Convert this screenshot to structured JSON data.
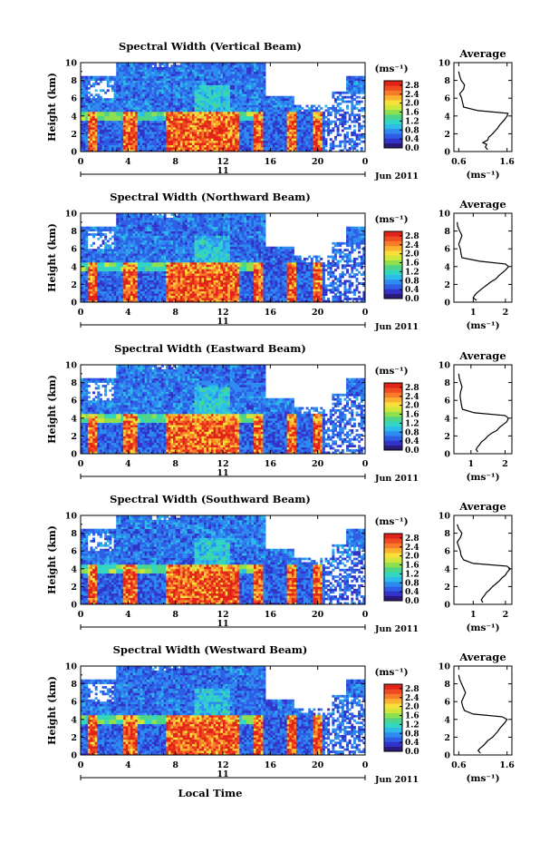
{
  "chart_data": [
    {
      "type": "heatmap",
      "title": "Spectral Width (Vertical Beam)",
      "ylabel": "Height (km)",
      "ylim": [
        0,
        10
      ],
      "yticks": [
        "0",
        "2",
        "4",
        "6",
        "8",
        "10"
      ],
      "xlim": [
        0,
        24
      ],
      "xticks": [
        "0",
        "4",
        "8",
        "12",
        "16",
        "20",
        "0"
      ],
      "day_label": "11",
      "date_label": "Jun 2011",
      "colorbar": {
        "unit": "(ms⁻¹)",
        "ticks": [
          "0.0",
          "0.4",
          "0.8",
          "1.2",
          "1.6",
          "2.0",
          "2.4",
          "2.8"
        ],
        "range": [
          0,
          3.0
        ],
        "colors": [
          "#2b1a7a",
          "#3232c8",
          "#2f5ee6",
          "#2e8cf0",
          "#2dbbe8",
          "#33d6c0",
          "#4ed58a",
          "#8ee04f",
          "#d0e63a",
          "#f7e03a",
          "#fbb130",
          "#f77b28",
          "#f04a22",
          "#e2231a"
        ]
      },
      "profile": {
        "title": "Average",
        "xlabel": "(ms⁻¹)",
        "xlim": [
          0.5,
          1.7
        ],
        "xticks": [
          "0.6",
          "1.6"
        ],
        "xtick_values": [
          0.6,
          1.6
        ],
        "ylim": [
          0,
          10
        ],
        "yticks": [
          "0",
          "2",
          "4",
          "6",
          "8",
          "10"
        ],
        "height_km": [
          0.2,
          0.5,
          0.8,
          1.0,
          1.3,
          1.6,
          2.0,
          2.3,
          2.6,
          3.0,
          3.3,
          3.6,
          4.0,
          4.3,
          4.6,
          5.0,
          5.5,
          6.0,
          6.5,
          7.0,
          7.5,
          8.0,
          8.5,
          9.0
        ],
        "width_ms": [
          1.2,
          1.15,
          1.18,
          1.1,
          1.2,
          1.22,
          1.3,
          1.35,
          1.4,
          1.45,
          1.5,
          1.55,
          1.6,
          1.62,
          1.0,
          0.7,
          0.68,
          0.66,
          0.62,
          0.7,
          0.72,
          0.65,
          0.62,
          0.6
        ]
      }
    },
    {
      "type": "heatmap",
      "title": "Spectral Width (Northward Beam)",
      "ylabel": "Height (km)",
      "ylim": [
        0,
        10
      ],
      "yticks": [
        "0",
        "2",
        "4",
        "6",
        "8",
        "10"
      ],
      "xlim": [
        0,
        24
      ],
      "xticks": [
        "0",
        "4",
        "8",
        "12",
        "16",
        "20",
        "0"
      ],
      "day_label": "11",
      "date_label": "Jun 2011",
      "colorbar": {
        "unit": "(ms⁻¹)",
        "ticks": [
          "0.0",
          "0.4",
          "0.8",
          "1.2",
          "1.6",
          "2.0",
          "2.4",
          "2.8"
        ],
        "range": [
          0,
          3.0
        ],
        "colors": [
          "#2b1a7a",
          "#3232c8",
          "#2f5ee6",
          "#2e8cf0",
          "#2dbbe8",
          "#33d6c0",
          "#4ed58a",
          "#8ee04f",
          "#d0e63a",
          "#f7e03a",
          "#fbb130",
          "#f77b28",
          "#f04a22",
          "#e2231a"
        ]
      },
      "profile": {
        "title": "Average",
        "xlabel": "(ms⁻¹)",
        "xlim": [
          0.4,
          2.2
        ],
        "xticks": [
          "1",
          "2"
        ],
        "xtick_values": [
          1,
          2
        ],
        "ylim": [
          0,
          10
        ],
        "yticks": [
          "0",
          "2",
          "4",
          "6",
          "8",
          "10"
        ],
        "height_km": [
          0.2,
          0.5,
          0.8,
          1.0,
          1.3,
          1.6,
          2.0,
          2.3,
          2.6,
          3.0,
          3.3,
          3.6,
          4.0,
          4.3,
          4.6,
          5.0,
          5.5,
          6.0,
          6.5,
          7.0,
          7.5,
          8.0,
          8.5,
          9.0
        ],
        "width_ms": [
          1.1,
          1.0,
          1.05,
          1.1,
          1.2,
          1.3,
          1.45,
          1.55,
          1.7,
          1.8,
          1.9,
          2.0,
          2.1,
          2.0,
          1.2,
          0.65,
          0.62,
          0.6,
          0.55,
          0.6,
          0.65,
          0.58,
          0.52,
          0.5
        ]
      }
    },
    {
      "type": "heatmap",
      "title": "Spectral Width (Eastward Beam)",
      "ylabel": "Height (km)",
      "ylim": [
        0,
        10
      ],
      "yticks": [
        "0",
        "2",
        "4",
        "6",
        "8",
        "10"
      ],
      "xlim": [
        0,
        24
      ],
      "xticks": [
        "0",
        "4",
        "8",
        "12",
        "16",
        "20",
        "0"
      ],
      "day_label": "11",
      "date_label": "Jun 2011",
      "colorbar": {
        "unit": "(ms⁻¹)",
        "ticks": [
          "0.0",
          "0.4",
          "0.8",
          "1.2",
          "1.6",
          "2.0",
          "2.4",
          "2.8"
        ],
        "range": [
          0,
          3.0
        ],
        "colors": [
          "#2b1a7a",
          "#3232c8",
          "#2f5ee6",
          "#2e8cf0",
          "#2dbbe8",
          "#33d6c0",
          "#4ed58a",
          "#8ee04f",
          "#d0e63a",
          "#f7e03a",
          "#fbb130",
          "#f77b28",
          "#f04a22",
          "#e2231a"
        ]
      },
      "profile": {
        "title": "Average",
        "xlabel": "(ms⁻¹)",
        "xlim": [
          0.5,
          2.2
        ],
        "xticks": [
          "1",
          "2"
        ],
        "xtick_values": [
          1,
          2
        ],
        "ylim": [
          0,
          10
        ],
        "yticks": [
          "0",
          "2",
          "4",
          "6",
          "8",
          "10"
        ],
        "height_km": [
          0.2,
          0.5,
          0.8,
          1.0,
          1.3,
          1.6,
          2.0,
          2.3,
          2.6,
          3.0,
          3.3,
          3.6,
          4.0,
          4.3,
          4.6,
          5.0,
          5.5,
          6.0,
          6.5,
          7.0,
          7.5,
          8.0,
          8.5,
          9.0
        ],
        "width_ms": [
          1.2,
          1.15,
          1.2,
          1.25,
          1.3,
          1.4,
          1.5,
          1.6,
          1.75,
          1.85,
          1.95,
          2.05,
          2.1,
          2.0,
          1.1,
          0.75,
          0.72,
          0.7,
          0.68,
          0.7,
          0.74,
          0.7,
          0.66,
          0.64
        ]
      }
    },
    {
      "type": "heatmap",
      "title": "Spectral Width (Southward Beam)",
      "ylabel": "Height (km)",
      "ylim": [
        0,
        10
      ],
      "yticks": [
        "0",
        "2",
        "4",
        "6",
        "8",
        "10"
      ],
      "xlim": [
        0,
        24
      ],
      "xticks": [
        "0",
        "4",
        "8",
        "12",
        "16",
        "20",
        "0"
      ],
      "day_label": "11",
      "date_label": "Jun 2011",
      "colorbar": {
        "unit": "(ms⁻¹)",
        "ticks": [
          "0.0",
          "0.4",
          "0.8",
          "1.2",
          "1.6",
          "2.0",
          "2.4",
          "2.8"
        ],
        "range": [
          0,
          3.0
        ],
        "colors": [
          "#2b1a7a",
          "#3232c8",
          "#2f5ee6",
          "#2e8cf0",
          "#2dbbe8",
          "#33d6c0",
          "#4ed58a",
          "#8ee04f",
          "#d0e63a",
          "#f7e03a",
          "#fbb130",
          "#f77b28",
          "#f04a22",
          "#e2231a"
        ]
      },
      "profile": {
        "title": "Average",
        "xlabel": "(ms⁻¹)",
        "xlim": [
          0.4,
          2.2
        ],
        "xticks": [
          "1",
          "2"
        ],
        "xtick_values": [
          1,
          2
        ],
        "ylim": [
          0,
          10
        ],
        "yticks": [
          "0",
          "2",
          "4",
          "6",
          "8",
          "10"
        ],
        "height_km": [
          0.2,
          0.5,
          0.8,
          1.0,
          1.3,
          1.6,
          2.0,
          2.3,
          2.6,
          3.0,
          3.3,
          3.6,
          4.0,
          4.3,
          4.6,
          5.0,
          5.5,
          6.0,
          6.5,
          7.0,
          7.5,
          8.0,
          8.5,
          9.0
        ],
        "width_ms": [
          1.3,
          1.25,
          1.3,
          1.35,
          1.4,
          1.5,
          1.6,
          1.7,
          1.8,
          1.9,
          2.0,
          2.05,
          2.15,
          2.05,
          1.0,
          0.7,
          0.62,
          0.6,
          0.55,
          0.5,
          0.6,
          0.65,
          0.55,
          0.5
        ]
      }
    },
    {
      "type": "heatmap",
      "title": "Spectral Width (Westward Beam)",
      "ylabel": "Height (km)",
      "ylim": [
        0,
        10
      ],
      "yticks": [
        "0",
        "2",
        "4",
        "6",
        "8",
        "10"
      ],
      "xlim": [
        0,
        24
      ],
      "xticks": [
        "0",
        "4",
        "8",
        "12",
        "16",
        "20",
        "0"
      ],
      "day_label": "11",
      "date_label": "Jun 2011",
      "xlabel": "Local Time",
      "colorbar": {
        "unit": "(ms⁻¹)",
        "ticks": [
          "0.0",
          "0.4",
          "0.8",
          "1.2",
          "1.6",
          "2.0",
          "2.4",
          "2.8"
        ],
        "range": [
          0,
          3.0
        ],
        "colors": [
          "#2b1a7a",
          "#3232c8",
          "#2f5ee6",
          "#2e8cf0",
          "#2dbbe8",
          "#33d6c0",
          "#4ed58a",
          "#8ee04f",
          "#d0e63a",
          "#f7e03a",
          "#fbb130",
          "#f77b28",
          "#f04a22",
          "#e2231a"
        ]
      },
      "profile": {
        "title": "Average",
        "xlabel": "(ms⁻¹)",
        "xlim": [
          0.5,
          1.7
        ],
        "xticks": [
          "0.6",
          "1.6"
        ],
        "xtick_values": [
          0.6,
          1.6
        ],
        "ylim": [
          0,
          10
        ],
        "yticks": [
          "0",
          "2",
          "4",
          "6",
          "8",
          "10"
        ],
        "height_km": [
          0.2,
          0.5,
          0.8,
          1.0,
          1.3,
          1.6,
          2.0,
          2.3,
          2.6,
          3.0,
          3.3,
          3.6,
          4.0,
          4.3,
          4.6,
          5.0,
          5.5,
          6.0,
          6.5,
          7.0,
          7.5,
          8.0,
          8.5,
          9.0
        ],
        "width_ms": [
          1.05,
          1.0,
          1.05,
          1.1,
          1.15,
          1.2,
          1.3,
          1.35,
          1.4,
          1.45,
          1.5,
          1.55,
          1.6,
          1.5,
          0.9,
          0.72,
          0.68,
          0.66,
          0.7,
          0.74,
          0.7,
          0.66,
          0.62,
          0.6
        ]
      }
    }
  ]
}
